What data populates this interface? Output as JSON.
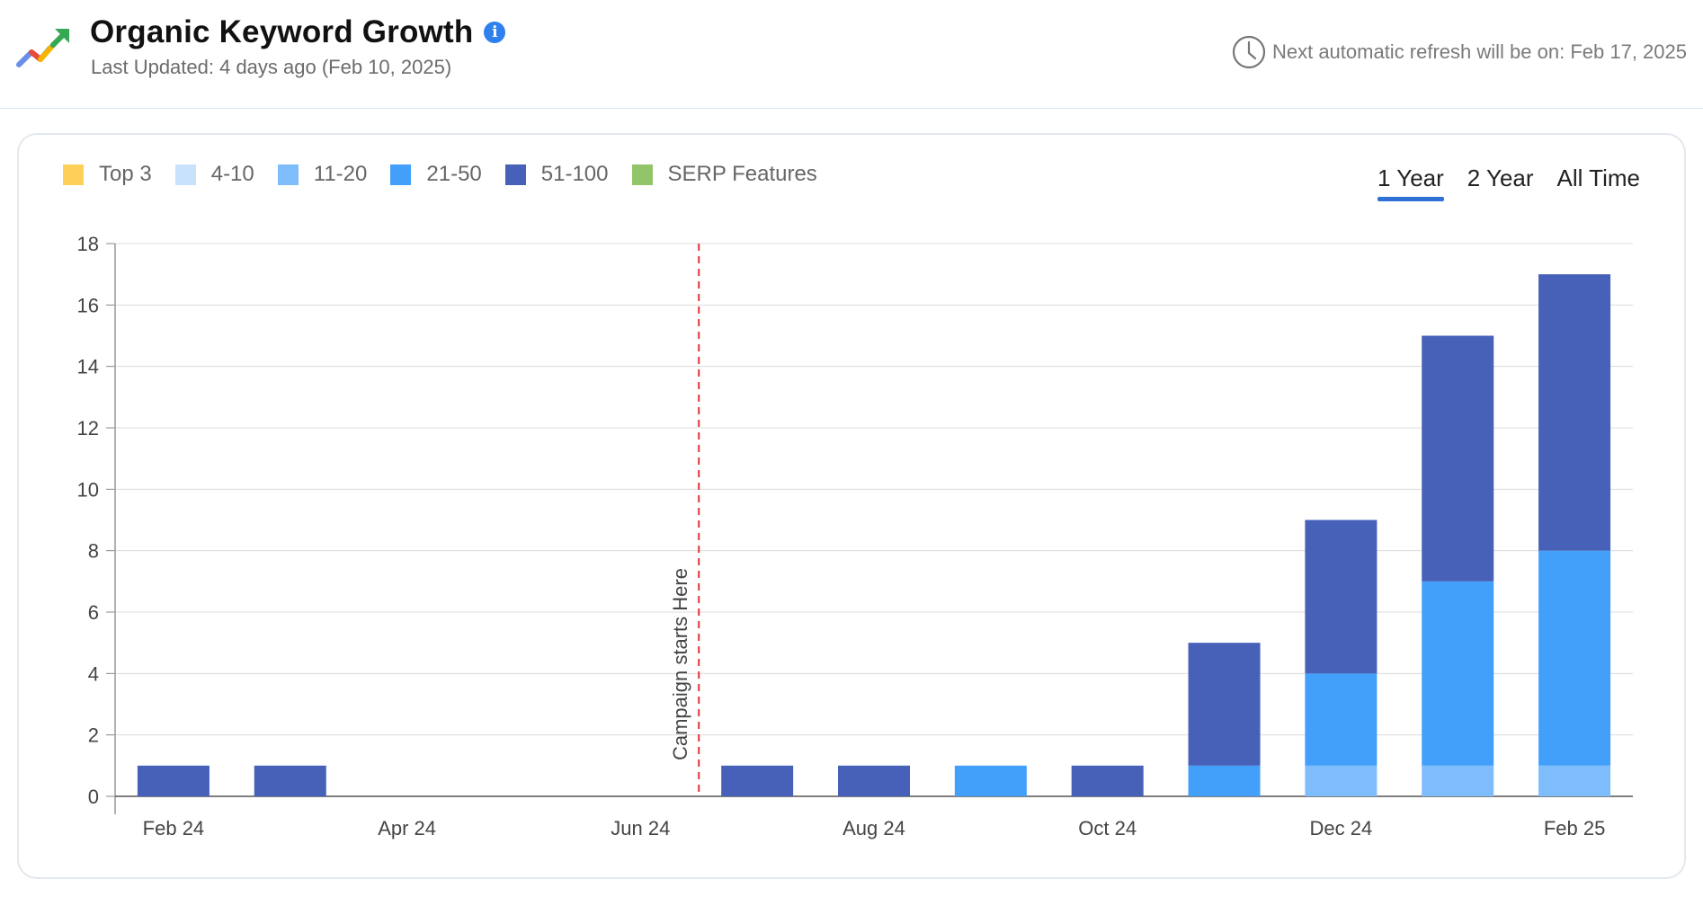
{
  "header": {
    "title": "Organic Keyword Growth",
    "info_icon": "info-icon",
    "last_updated": "Last Updated: 4 days ago (Feb 10, 2025)",
    "refresh_text": "Next automatic refresh will be on: Feb 17, 2025",
    "refresh_icon": "clock-icon"
  },
  "time_ranges": [
    {
      "label": "1 Year",
      "active": true
    },
    {
      "label": "2 Year",
      "active": false
    },
    {
      "label": "All Time",
      "active": false
    }
  ],
  "colors": {
    "accent": "#2f6fd6",
    "top3": "#fdd05a",
    "r4_10": "#c9e2fb",
    "r11_20": "#7fbcfb",
    "r21_50": "#42a0fa",
    "r51_100": "#4760b8",
    "serp": "#92c46a",
    "campaign_line": "#e0353b"
  },
  "chart_data": {
    "type": "bar",
    "stacked": true,
    "legend": [
      {
        "name": "Top 3",
        "color": "#fdd05a"
      },
      {
        "name": "4-10",
        "color": "#c9e2fb"
      },
      {
        "name": "11-20",
        "color": "#7fbcfb"
      },
      {
        "name": "21-50",
        "color": "#42a0fa"
      },
      {
        "name": "51-100",
        "color": "#4760b8"
      },
      {
        "name": "SERP Features",
        "color": "#92c46a"
      }
    ],
    "legend_position": "top-left",
    "categories": [
      "Feb 24",
      "Mar 24",
      "Apr 24",
      "May 24",
      "Jun 24",
      "Jul 24",
      "Aug 24",
      "Sep 24",
      "Oct 24",
      "Nov 24",
      "Dec 24",
      "Jan 25",
      "Feb 25"
    ],
    "tick_labels": [
      "Feb 24",
      "Apr 24",
      "Jun 24",
      "Aug 24",
      "Oct 24",
      "Dec 24",
      "Feb 25"
    ],
    "series": [
      {
        "name": "Top 3",
        "color": "#fdd05a",
        "values": [
          0,
          0,
          0,
          0,
          0,
          0,
          0,
          0,
          0,
          0,
          0,
          0,
          0
        ]
      },
      {
        "name": "4-10",
        "color": "#c9e2fb",
        "values": [
          0,
          0,
          0,
          0,
          0,
          0,
          0,
          0,
          0,
          0,
          0,
          0,
          0
        ]
      },
      {
        "name": "11-20",
        "color": "#7fbcfb",
        "values": [
          0,
          0,
          0,
          0,
          0,
          0,
          0,
          0,
          0,
          0,
          1,
          1,
          1
        ]
      },
      {
        "name": "21-50",
        "color": "#42a0fa",
        "values": [
          0,
          0,
          0,
          0,
          0,
          0,
          0,
          1,
          0,
          1,
          3,
          6,
          7
        ]
      },
      {
        "name": "51-100",
        "color": "#4760b8",
        "values": [
          1,
          1,
          0,
          0,
          0,
          1,
          1,
          0,
          1,
          4,
          5,
          8,
          9
        ]
      },
      {
        "name": "SERP Features",
        "color": "#92c46a",
        "values": [
          0,
          0,
          0,
          0,
          0,
          0,
          0,
          0,
          0,
          0,
          0,
          0,
          0
        ]
      }
    ],
    "ylim": [
      0,
      18
    ],
    "yticks": [
      0,
      2,
      4,
      6,
      8,
      10,
      12,
      14,
      16,
      18
    ],
    "grid": true,
    "annotation": {
      "text": "Campaign starts Here",
      "x_between": [
        "Jun 24",
        "Jul 24"
      ]
    }
  }
}
